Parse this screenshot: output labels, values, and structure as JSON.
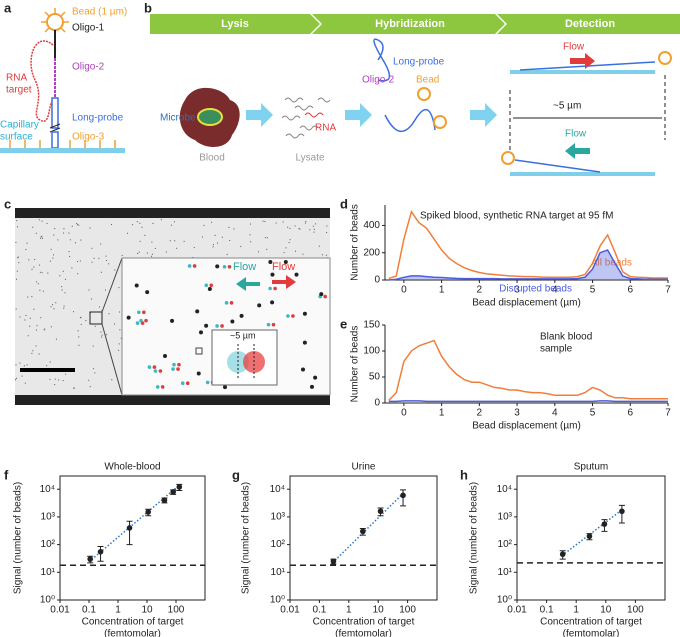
{
  "diagram_a": {
    "panel": "a",
    "bead": "Bead (1 µm)",
    "oligo1": "Oligo-1",
    "rna_target": [
      "RNA",
      "target"
    ],
    "oligo2": "Oligo-2",
    "long_probe": "Long-probe",
    "capillary_surface": [
      "Capillary",
      "surface"
    ],
    "oligo3": "Oligo-3"
  },
  "diagram_b": {
    "panel": "b",
    "steps": [
      "Lysis",
      "Hybridization",
      "Detection"
    ],
    "microbe": "Microbe",
    "blood": "Blood",
    "rna": "RNA",
    "lysate": "Lysate",
    "long_probe": "Long-probe",
    "oligo2": "Oligo-2",
    "bead": "Bead",
    "flow_top": "Flow",
    "distance": "~5 µm",
    "flow_bottom": "Flow"
  },
  "image_c": {
    "panel": "c",
    "flow_left": "Flow",
    "flow_right": "Flow",
    "distance": "~5 µm"
  },
  "chart_data": [
    {
      "panel": "d",
      "type": "line",
      "annotation": "Spiked blood, synthetic RNA target at 95 fM",
      "xlabel": "Bead displacement (µm)",
      "ylabel": "Number of beads",
      "x": [
        -0.4,
        -0.2,
        0,
        0.2,
        0.4,
        0.6,
        0.8,
        1.0,
        1.2,
        1.4,
        1.6,
        1.8,
        2.0,
        2.2,
        2.4,
        2.6,
        2.8,
        3.0,
        3.2,
        3.4,
        3.6,
        3.8,
        4.0,
        4.2,
        4.4,
        4.6,
        4.8,
        5.0,
        5.2,
        5.4,
        5.6,
        5.8,
        6.0,
        6.2,
        6.4,
        6.6,
        6.8,
        7.0
      ],
      "xlim": [
        -0.5,
        7
      ],
      "xticks": [
        0,
        1,
        2,
        3,
        4,
        5,
        6,
        7
      ],
      "ylim": [
        0,
        550
      ],
      "yticks": [
        0,
        200,
        400
      ],
      "series": [
        {
          "name": "All beads",
          "color": "#f07f3c",
          "values": [
            10,
            30,
            300,
            500,
            420,
            380,
            300,
            220,
            160,
            120,
            90,
            70,
            55,
            45,
            40,
            35,
            30,
            28,
            25,
            25,
            22,
            20,
            20,
            20,
            20,
            25,
            40,
            120,
            250,
            330,
            200,
            60,
            25,
            20,
            18,
            15,
            15,
            15
          ]
        },
        {
          "name": "Disrupted beads",
          "color": "#4b5de0",
          "area": true,
          "values": [
            0,
            5,
            20,
            30,
            30,
            25,
            20,
            18,
            15,
            12,
            10,
            10,
            10,
            10,
            10,
            8,
            8,
            8,
            8,
            8,
            8,
            8,
            8,
            8,
            8,
            10,
            20,
            80,
            200,
            220,
            120,
            30,
            10,
            8,
            5,
            5,
            5,
            5
          ]
        }
      ]
    },
    {
      "panel": "e",
      "type": "line",
      "annotation": [
        "Blank blood",
        "sample"
      ],
      "xlabel": "Bead displacement (µm)",
      "ylabel": "Number of beads",
      "x": [
        -0.4,
        -0.2,
        0,
        0.2,
        0.4,
        0.6,
        0.8,
        1.0,
        1.2,
        1.4,
        1.6,
        1.8,
        2.0,
        2.2,
        2.4,
        2.6,
        2.8,
        3.0,
        3.2,
        3.4,
        3.6,
        3.8,
        4.0,
        4.2,
        4.4,
        4.6,
        4.8,
        5.0,
        5.2,
        5.4,
        5.6,
        5.8,
        6.0,
        6.2,
        6.4,
        6.6,
        6.8,
        7.0
      ],
      "xlim": [
        -0.5,
        7
      ],
      "xticks": [
        0,
        1,
        2,
        3,
        4,
        5,
        6,
        7
      ],
      "ylim": [
        0,
        150
      ],
      "yticks": [
        0,
        50,
        100,
        150
      ],
      "series": [
        {
          "color": "#f07f3c",
          "values": [
            5,
            20,
            80,
            100,
            110,
            115,
            120,
            90,
            70,
            55,
            45,
            40,
            40,
            35,
            30,
            28,
            25,
            25,
            22,
            20,
            20,
            18,
            15,
            15,
            15,
            15,
            20,
            30,
            25,
            15,
            10,
            10,
            8,
            8,
            8,
            8,
            8,
            8
          ]
        },
        {
          "color": "#4b5de0",
          "values": [
            3,
            3,
            4,
            4,
            4,
            3,
            3,
            3,
            3,
            3,
            3,
            3,
            3,
            3,
            3,
            3,
            3,
            3,
            3,
            3,
            3,
            3,
            3,
            3,
            3,
            3,
            3,
            3,
            4,
            4,
            3,
            3,
            3,
            3,
            3,
            3,
            3,
            3
          ]
        }
      ]
    },
    {
      "panel": "f",
      "type": "scatter",
      "title": "Whole-blood",
      "xlabel": [
        "Concentration of target",
        "(femtomolar)"
      ],
      "ylabel": "Signal (number of beads)",
      "log_x": true,
      "log_y": true,
      "xlim": [
        0.01,
        1000
      ],
      "xticks": [
        0.01,
        0.1,
        1,
        10,
        100
      ],
      "ylim": [
        1,
        30000
      ],
      "yticks": [
        {
          "value": 1,
          "label": "10⁰"
        },
        {
          "value": 10,
          "label": "10¹"
        },
        {
          "value": 100,
          "label": "10²"
        },
        {
          "value": 1000,
          "label": "10³"
        },
        {
          "value": 10000,
          "label": "10⁴"
        }
      ],
      "x": [
        0.11,
        0.25,
        2.5,
        11,
        40,
        80,
        130
      ],
      "values": [
        30,
        55,
        400,
        1500,
        4000,
        8000,
        12000
      ],
      "errors": [
        8,
        30,
        300,
        400,
        800,
        1500,
        3000
      ],
      "color": "#222222",
      "fit": {
        "x": [
          0.1,
          130
        ],
        "values": [
          24,
          14000
        ],
        "color": "#2e75c9"
      },
      "threshold": 18
    },
    {
      "panel": "g",
      "type": "scatter",
      "title": "Urine",
      "xlabel": [
        "Concentration of target",
        "(femtomolar)"
      ],
      "ylabel": "Signal (number of beads)",
      "log_x": true,
      "log_y": true,
      "xlim": [
        0.01,
        1000
      ],
      "xticks": [
        0.01,
        0.1,
        1,
        10,
        100
      ],
      "ylim": [
        1,
        30000
      ],
      "yticks": [
        {
          "value": 1,
          "label": "10⁰"
        },
        {
          "value": 10,
          "label": "10¹"
        },
        {
          "value": 100,
          "label": "10²"
        },
        {
          "value": 1000,
          "label": "10³"
        },
        {
          "value": 10000,
          "label": "10⁴"
        }
      ],
      "x": [
        0.3,
        3,
        12,
        70
      ],
      "values": [
        25,
        300,
        1600,
        6000
      ],
      "errors": [
        5,
        80,
        500,
        3500
      ],
      "color": "#222222",
      "fit": {
        "x": [
          0.28,
          70
        ],
        "values": [
          22,
          7000
        ],
        "color": "#2e75c9"
      },
      "threshold": 18
    },
    {
      "panel": "h",
      "type": "scatter",
      "title": "Sputum",
      "xlabel": [
        "Concentration of target",
        "(femtomolar)"
      ],
      "ylabel": "Signal (number of beads)",
      "log_x": true,
      "log_y": true,
      "xlim": [
        0.01,
        1000
      ],
      "xticks": [
        0.01,
        0.1,
        1,
        10,
        100
      ],
      "ylim": [
        1,
        30000
      ],
      "yticks": [
        {
          "value": 1,
          "label": "10⁰"
        },
        {
          "value": 10,
          "label": "10¹"
        },
        {
          "value": 100,
          "label": "10²"
        },
        {
          "value": 1000,
          "label": "10³"
        },
        {
          "value": 10000,
          "label": "10⁴"
        }
      ],
      "x": [
        0.35,
        2.8,
        9,
        35
      ],
      "values": [
        45,
        200,
        550,
        1600
      ],
      "errors": [
        15,
        50,
        250,
        1000
      ],
      "color": "#222222",
      "fit": {
        "x": [
          0.33,
          35
        ],
        "values": [
          40,
          1800
        ],
        "color": "#2e75c9"
      },
      "threshold": 22
    }
  ]
}
